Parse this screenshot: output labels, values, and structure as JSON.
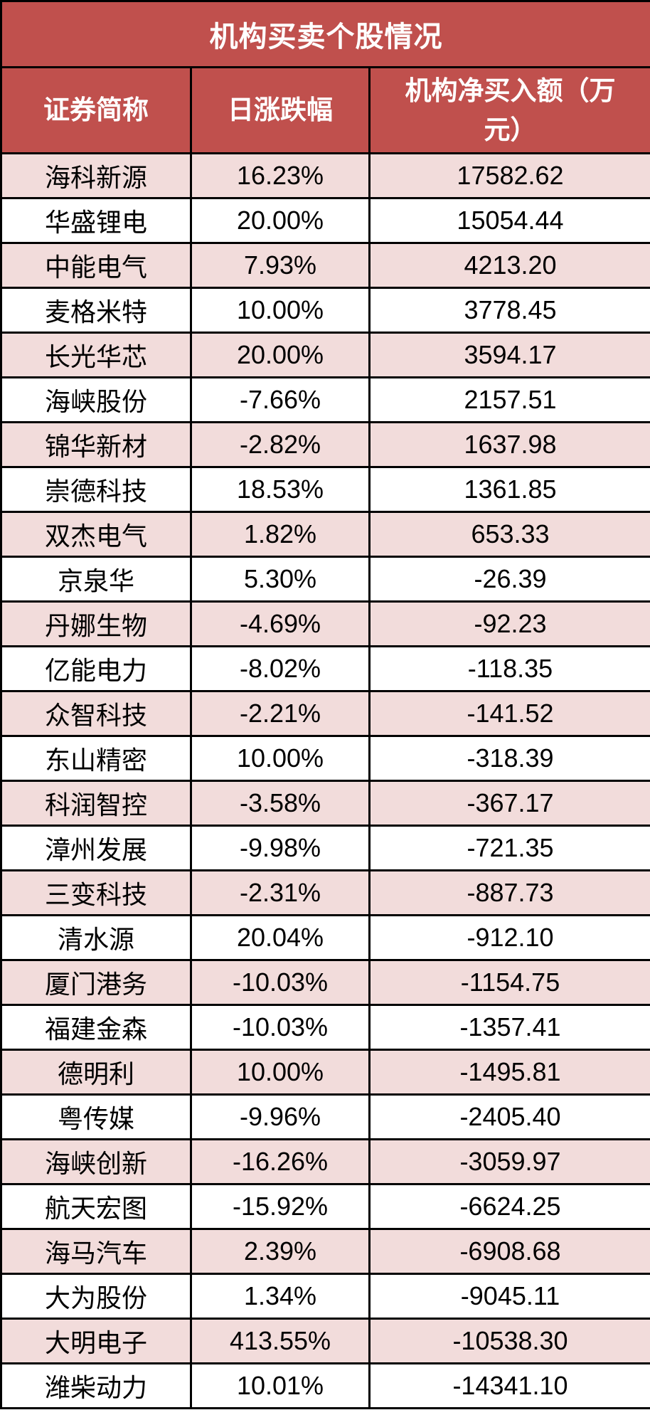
{
  "colors": {
    "header_bg": "#C0504D",
    "header_text": "#FFFFFF",
    "row_pink_bg": "#F2DCDB",
    "row_white_bg": "#FFFFFF",
    "border": "#000000",
    "cell_text": "#000000"
  },
  "chart_data": {
    "type": "table",
    "title": "机构买卖个股情况",
    "columns": [
      "证券简称",
      "日涨跌幅",
      "机构净买入额（万元）"
    ],
    "rows": [
      [
        "海科新源",
        "16.23%",
        "17582.62"
      ],
      [
        "华盛锂电",
        "20.00%",
        "15054.44"
      ],
      [
        "中能电气",
        "7.93%",
        "4213.20"
      ],
      [
        "麦格米特",
        "10.00%",
        "3778.45"
      ],
      [
        "长光华芯",
        "20.00%",
        "3594.17"
      ],
      [
        "海峡股份",
        "-7.66%",
        "2157.51"
      ],
      [
        "锦华新材",
        "-2.82%",
        "1637.98"
      ],
      [
        "崇德科技",
        "18.53%",
        "1361.85"
      ],
      [
        "双杰电气",
        "1.82%",
        "653.33"
      ],
      [
        "京泉华",
        "5.30%",
        "-26.39"
      ],
      [
        "丹娜生物",
        "-4.69%",
        "-92.23"
      ],
      [
        "亿能电力",
        "-8.02%",
        "-118.35"
      ],
      [
        "众智科技",
        "-2.21%",
        "-141.52"
      ],
      [
        "东山精密",
        "10.00%",
        "-318.39"
      ],
      [
        "科润智控",
        "-3.58%",
        "-367.17"
      ],
      [
        "漳州发展",
        "-9.98%",
        "-721.35"
      ],
      [
        "三变科技",
        "-2.31%",
        "-887.73"
      ],
      [
        "清水源",
        "20.04%",
        "-912.10"
      ],
      [
        "厦门港务",
        "-10.03%",
        "-1154.75"
      ],
      [
        "福建金森",
        "-10.03%",
        "-1357.41"
      ],
      [
        "德明利",
        "10.00%",
        "-1495.81"
      ],
      [
        "粤传媒",
        "-9.96%",
        "-2405.40"
      ],
      [
        "海峡创新",
        "-16.26%",
        "-3059.97"
      ],
      [
        "航天宏图",
        "-15.92%",
        "-6624.25"
      ],
      [
        "海马汽车",
        "2.39%",
        "-6908.68"
      ],
      [
        "大为股份",
        "1.34%",
        "-9045.11"
      ],
      [
        "大明电子",
        "413.55%",
        "-10538.30"
      ],
      [
        "潍柴动力",
        "10.01%",
        "-14341.10"
      ]
    ]
  }
}
